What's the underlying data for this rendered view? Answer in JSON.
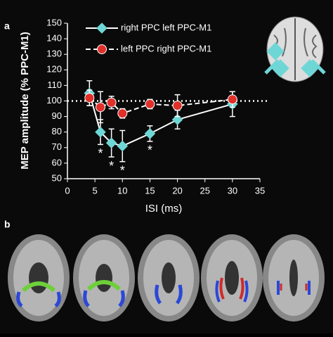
{
  "panel_labels": [
    "a",
    "b"
  ],
  "chart_data": {
    "type": "line",
    "x_label": "ISI (ms)",
    "y_label": "MEP amplitude (% PPC-M1)",
    "xlim": [
      0,
      35
    ],
    "xticks": [
      0,
      5,
      10,
      15,
      20,
      25,
      30,
      35
    ],
    "ylim": [
      50,
      150
    ],
    "yticks": [
      50,
      60,
      70,
      80,
      90,
      100,
      110,
      120,
      130,
      140,
      150
    ],
    "reference_line": 100,
    "series": [
      {
        "name": "right PPC left PPC-M1",
        "color": "#6fd6d6",
        "marker": "diamond",
        "dashed": false,
        "x": [
          4,
          6,
          8,
          10,
          15,
          20,
          30
        ],
        "values": [
          105,
          80,
          73,
          71,
          79,
          88,
          98
        ],
        "errors": [
          8,
          8,
          9,
          10,
          5,
          6,
          8
        ]
      },
      {
        "name": "left PPC right PPC-M1",
        "color": "#e0302a",
        "marker": "circle",
        "dashed": true,
        "x": [
          4,
          6,
          8,
          10,
          15,
          20,
          30
        ],
        "values": [
          102,
          96,
          99,
          92,
          98,
          97,
          101
        ],
        "errors": [
          5,
          10,
          4,
          3,
          3,
          7,
          5
        ]
      }
    ],
    "significant_x": [
      6,
      8,
      10,
      15
    ],
    "significance_label": "*"
  }
}
